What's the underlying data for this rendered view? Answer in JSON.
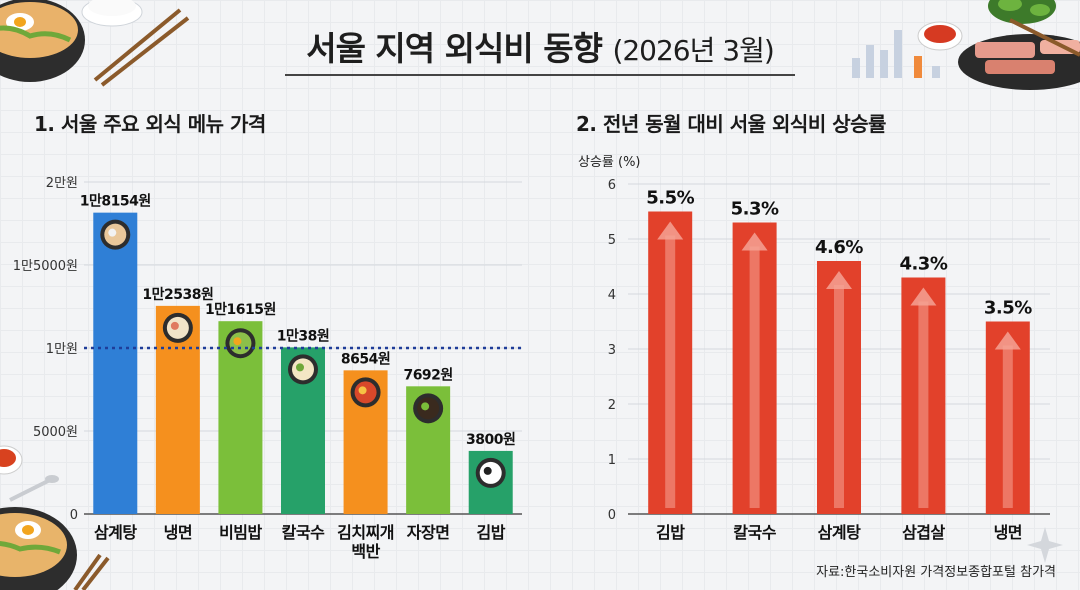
{
  "header": {
    "title": "서울 지역 외식비 동향",
    "title_sub": "(2026년 3월)"
  },
  "source": "자료:한국소비자원 가격정보종합포털 참가격",
  "chart_data": [
    {
      "type": "bar",
      "title": "1. 서울 주요 외식 메뉴 가격",
      "categories": [
        "삼계탕",
        "냉면",
        "비빔밥",
        "칼국수",
        "김치찌개\n백반",
        "자장면",
        "김밥"
      ],
      "values": [
        18154,
        12538,
        11615,
        10038,
        8654,
        7692,
        3800
      ],
      "value_labels": [
        "1만8154원",
        "1만2538원",
        "1만1615원",
        "1만38원",
        "8654원",
        "7692원",
        "3800원"
      ],
      "colors": [
        "#2f7fd6",
        "#f5901e",
        "#7bbf3a",
        "#26a169",
        "#f5901e",
        "#7bbf3a",
        "#26a169"
      ],
      "icons": [
        "samgyetang-bowl-icon",
        "naengmyeon-bowl-icon",
        "bibimbap-bowl-icon",
        "kalguksu-bowl-icon",
        "kimchi-stew-pot-icon",
        "jajangmyeon-bowl-icon",
        "kimbap-roll-icon"
      ],
      "ylim": [
        0,
        20000
      ],
      "yticks": [
        0,
        5000,
        10000,
        15000,
        20000
      ],
      "ytick_labels": [
        "0",
        "5000원",
        "1만원",
        "1만5000원",
        "2만원"
      ],
      "reference_line": {
        "value": 10000,
        "style": "dotted",
        "color": "#1f3d99"
      },
      "grid": true
    },
    {
      "type": "bar",
      "title": "2. 전년 동월 대비 서울 외식비 상승률",
      "ylabel": "상승률 (%)",
      "categories": [
        "김밥",
        "칼국수",
        "삼계탕",
        "삼겹살",
        "냉면"
      ],
      "values": [
        5.5,
        5.3,
        4.6,
        4.3,
        3.5
      ],
      "value_labels": [
        "5.5%",
        "5.3%",
        "4.6%",
        "4.3%",
        "3.5%"
      ],
      "color": "#e2412b",
      "ylim": [
        0,
        6
      ],
      "yticks": [
        0,
        1,
        2,
        3,
        4,
        5,
        6
      ],
      "grid": true
    }
  ]
}
